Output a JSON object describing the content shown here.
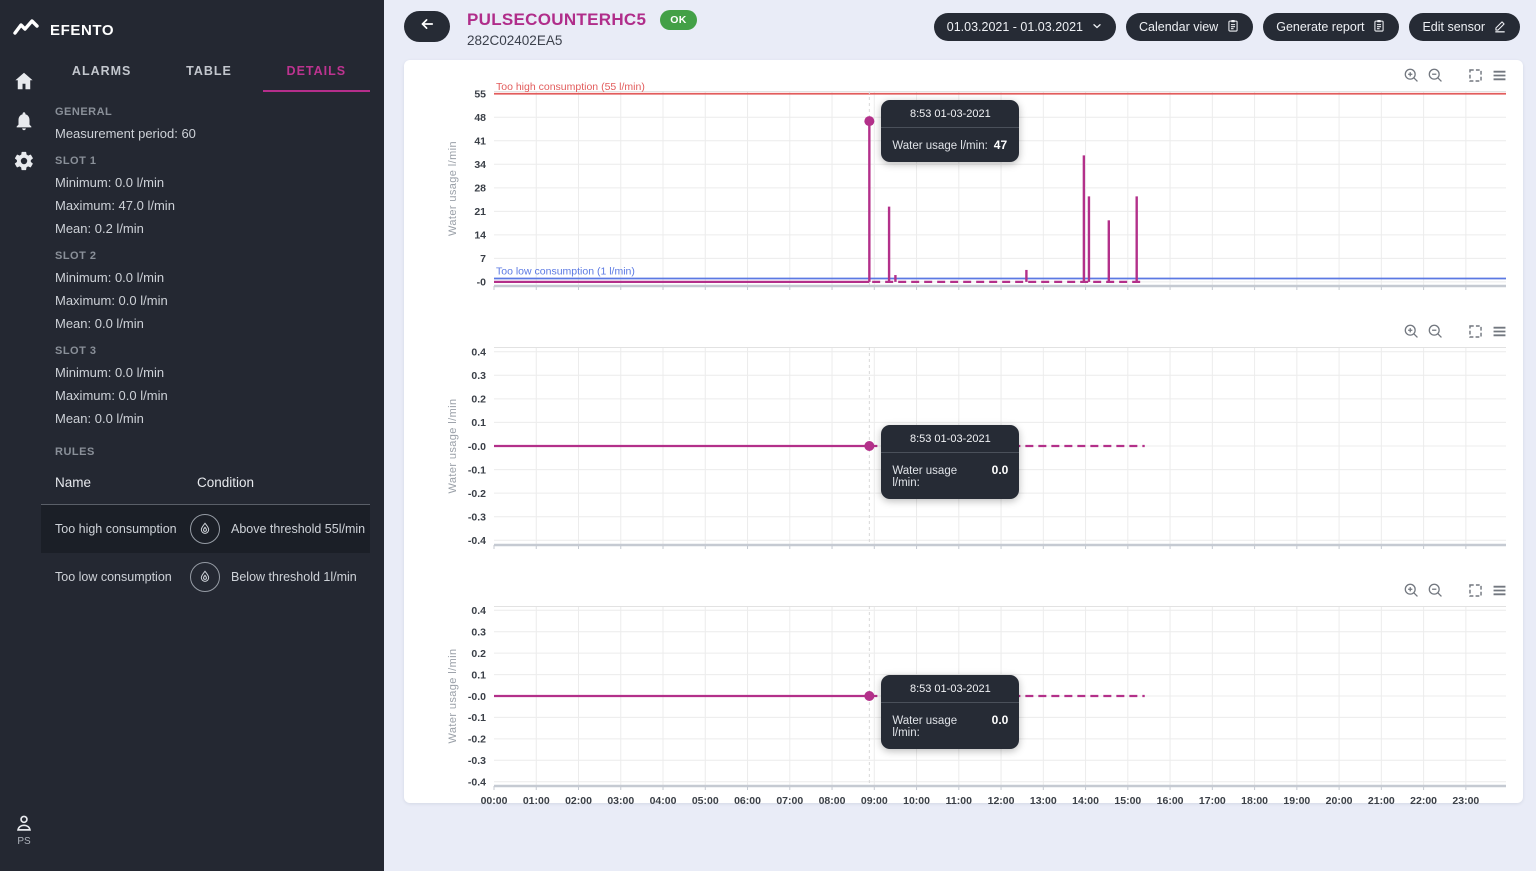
{
  "app": {
    "brand": "EFENTO",
    "user_initials": "PS"
  },
  "colors": {
    "accent_magenta": "#b3308a",
    "status_ok_green": "#43a047",
    "threshold_high_red": "#e25c5c",
    "threshold_low_blue": "#5b79e3"
  },
  "icons": {
    "brand_logo": "pulse-zigzag-logo",
    "nav_rail": [
      "home-icon",
      "alarm-bell-icon",
      "settings-gear-icon",
      "person-icon"
    ],
    "rule_condition": "water-drop-icon",
    "chart_toolbar": [
      "zoom-in-icon",
      "zoom-out-icon",
      "selection-zoom-icon",
      "chart-menu-icon"
    ],
    "header": [
      "arrow-left-icon",
      "chevron-down-icon",
      "clipboard-icon",
      "pencil-icon"
    ]
  },
  "sidebar": {
    "tabs": [
      {
        "label": "ALARMS",
        "active": false
      },
      {
        "label": "TABLE",
        "active": false
      },
      {
        "label": "DETAILS",
        "active": true
      }
    ],
    "general": {
      "title": "GENERAL",
      "line": "Measurement period: 60"
    },
    "slots": [
      {
        "title": "SLOT 1",
        "lines": [
          "Minimum: 0.0 l/min",
          "Maximum: 47.0 l/min",
          "Mean: 0.2 l/min"
        ]
      },
      {
        "title": "SLOT 2",
        "lines": [
          "Minimum: 0.0 l/min",
          "Maximum: 0.0 l/min",
          "Mean: 0.0 l/min"
        ]
      },
      {
        "title": "SLOT 3",
        "lines": [
          "Minimum: 0.0 l/min",
          "Maximum: 0.0 l/min",
          "Mean: 0.0 l/min"
        ]
      }
    ],
    "rules": {
      "title": "RULES",
      "columns": [
        "Name",
        "Condition"
      ],
      "rows": [
        {
          "name": "Too high consumption",
          "condition": "Above threshold 55l/min",
          "highlighted": true
        },
        {
          "name": "Too low consumption",
          "condition": "Below threshold 1l/min",
          "highlighted": false
        }
      ]
    }
  },
  "header": {
    "title": "PULSECOUNTERHC5",
    "status": "OK",
    "serial": "282C02402EA5",
    "controls": {
      "date_range": "01.03.2021 - 01.03.2021",
      "calendar_view": "Calendar view",
      "generate_report": "Generate report",
      "edit_sensor": "Edit sensor"
    }
  },
  "chart_data": [
    {
      "type": "line",
      "ylabel": "Water usage l/min",
      "xlim": [
        0,
        23.95
      ],
      "ylim": [
        -1.2,
        55.8
      ],
      "yticks": [
        [
          55,
          "55"
        ],
        [
          48.125,
          "48"
        ],
        [
          41.25,
          "41"
        ],
        [
          34.375,
          "34"
        ],
        [
          27.5,
          "28"
        ],
        [
          20.625,
          "21"
        ],
        [
          13.75,
          "14"
        ],
        [
          6.875,
          "7"
        ],
        [
          0,
          "-0"
        ]
      ],
      "thresholds": [
        {
          "label": "Too high consumption (55 l/min)",
          "value": 55,
          "color": "#e25c5c"
        },
        {
          "label": "Too low consumption (1 l/min)",
          "value": 1,
          "color": "#5b79e3"
        }
      ],
      "series_color": "#b3308a",
      "solid": [
        [
          0,
          0
        ],
        [
          8.883,
          0
        ]
      ],
      "dashed": [
        [
          8.95,
          0
        ],
        [
          15.4,
          0
        ]
      ],
      "spikes": [
        [
          8.883,
          47
        ],
        [
          9.35,
          22
        ],
        [
          9.5,
          2
        ],
        [
          12.6,
          3.5
        ],
        [
          13.96,
          37
        ],
        [
          14.08,
          25
        ],
        [
          14.55,
          18
        ],
        [
          15.21,
          25
        ]
      ],
      "marker": [
        8.883,
        47
      ],
      "tooltip": {
        "time": "8:53 01-03-2021",
        "label": "Water usage l/min:",
        "value": "47"
      }
    },
    {
      "type": "line",
      "ylabel": "Water usage l/min",
      "xlim": [
        0,
        23.95
      ],
      "ylim": [
        -0.42,
        0.42
      ],
      "yticks": [
        [
          0.4,
          "0.4"
        ],
        [
          0.3,
          "0.3"
        ],
        [
          0.2,
          "0.2"
        ],
        [
          0.1,
          "0.1"
        ],
        [
          0,
          "-0.0"
        ],
        [
          -0.1,
          "-0.1"
        ],
        [
          -0.2,
          "-0.2"
        ],
        [
          -0.3,
          "-0.3"
        ],
        [
          -0.4,
          "-0.4"
        ]
      ],
      "thresholds": [],
      "series_color": "#b3308a",
      "solid": [
        [
          0,
          0
        ],
        [
          8.883,
          0
        ]
      ],
      "dashed": [
        [
          8.883,
          0
        ],
        [
          15.4,
          0
        ]
      ],
      "spikes": [],
      "marker": [
        8.883,
        0
      ],
      "tooltip": {
        "time": "8:53 01-03-2021",
        "label": "Water usage l/min:",
        "value": "0.0"
      }
    },
    {
      "type": "line",
      "ylabel": "Water usage l/min",
      "xlim": [
        0,
        23.95
      ],
      "ylim": [
        -0.42,
        0.42
      ],
      "yticks": [
        [
          0.4,
          "0.4"
        ],
        [
          0.3,
          "0.3"
        ],
        [
          0.2,
          "0.2"
        ],
        [
          0.1,
          "0.1"
        ],
        [
          0,
          "-0.0"
        ],
        [
          -0.1,
          "-0.1"
        ],
        [
          -0.2,
          "-0.2"
        ],
        [
          -0.3,
          "-0.3"
        ],
        [
          -0.4,
          "-0.4"
        ]
      ],
      "thresholds": [],
      "series_color": "#b3308a",
      "solid": [
        [
          0,
          0
        ],
        [
          8.883,
          0
        ]
      ],
      "dashed": [
        [
          8.883,
          0
        ],
        [
          15.4,
          0
        ]
      ],
      "spikes": [],
      "marker": [
        8.883,
        0
      ],
      "tooltip": {
        "time": "8:53 01-03-2021",
        "label": "Water usage l/min:",
        "value": "0.0"
      },
      "show_x_labels": true,
      "x_labels": [
        "00:00",
        "01:00",
        "02:00",
        "03:00",
        "04:00",
        "05:00",
        "06:00",
        "07:00",
        "08:00",
        "09:00",
        "10:00",
        "11:00",
        "12:00",
        "13:00",
        "14:00",
        "15:00",
        "16:00",
        "17:00",
        "18:00",
        "19:00",
        "20:00",
        "21:00",
        "22:00",
        "23:00"
      ]
    }
  ]
}
